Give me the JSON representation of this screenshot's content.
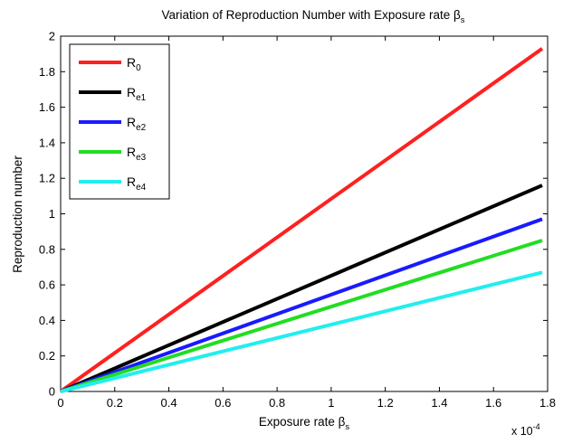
{
  "chart_data": {
    "type": "line",
    "title": {
      "main": "Variation of Reproduction Number with Exposure rate β",
      "sub": "s"
    },
    "xlabel": {
      "main": "Exposure rate β",
      "sub": "s"
    },
    "ylabel": "Reproduction number",
    "x_multiplier": {
      "base": "x 10",
      "exp": "-4"
    },
    "xlim": [
      0,
      1.8
    ],
    "ylim": [
      0,
      2
    ],
    "xticks": [
      "0",
      "0.2",
      "0.4",
      "0.6",
      "0.8",
      "1",
      "1.2",
      "1.4",
      "1.6",
      "1.8"
    ],
    "yticks": [
      "0",
      "0.2",
      "0.4",
      "0.6",
      "0.8",
      "1",
      "1.2",
      "1.4",
      "1.6",
      "1.8",
      "2"
    ],
    "grid": false,
    "legend_position": "top-left",
    "series": [
      {
        "name": "R",
        "sub": "0",
        "color": "#ff2020",
        "x": [
          0,
          1.78
        ],
        "y": [
          0,
          1.93
        ]
      },
      {
        "name": "R",
        "sub": "e1",
        "color": "#000000",
        "x": [
          0,
          1.78
        ],
        "y": [
          0,
          1.16
        ]
      },
      {
        "name": "R",
        "sub": "e2",
        "color": "#1a1aff",
        "x": [
          0,
          1.78
        ],
        "y": [
          0,
          0.97
        ]
      },
      {
        "name": "R",
        "sub": "e3",
        "color": "#22dd22",
        "x": [
          0,
          1.78
        ],
        "y": [
          0,
          0.85
        ]
      },
      {
        "name": "R",
        "sub": "e4",
        "color": "#22eeee",
        "x": [
          0,
          1.78
        ],
        "y": [
          0,
          0.67
        ]
      }
    ]
  }
}
